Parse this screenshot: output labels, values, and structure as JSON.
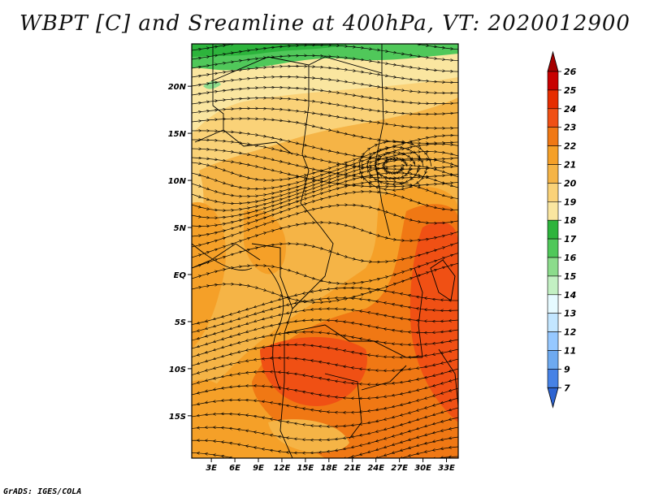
{
  "title": "WBPT [C] and Sreamline at 400hPa, VT: 2020012900",
  "credit": "GrADS: IGES/COLA",
  "map": {
    "lat_labels": [
      "20N",
      "15N",
      "10N",
      "5N",
      "EQ",
      "5S",
      "10S",
      "15S"
    ],
    "lon_labels": [
      "3E",
      "6E",
      "9E",
      "12E",
      "15E",
      "18E",
      "21E",
      "24E",
      "27E",
      "30E",
      "33E"
    ],
    "lat_values": [
      20,
      15,
      10,
      5,
      0,
      -5,
      -10,
      -15
    ],
    "lon_values": [
      3,
      6,
      9,
      12,
      15,
      18,
      21,
      24,
      27,
      30,
      33
    ],
    "extent": {
      "lon_min": 0.5,
      "lon_max": 34.5,
      "lat_min": -19.5,
      "lat_max": 24.5
    },
    "variable": "WBPT [C]",
    "level": "400hPa",
    "valid_time": "2020012900"
  },
  "colorbar": {
    "labels": [
      "26",
      "25",
      "24",
      "23",
      "22",
      "21",
      "20",
      "19",
      "18",
      "17",
      "16",
      "15",
      "14",
      "13",
      "12",
      "11",
      "9",
      "7"
    ],
    "colors": [
      "#a50000",
      "#c80000",
      "#e62d00",
      "#f05014",
      "#f07814",
      "#f5a028",
      "#f5b446",
      "#fad278",
      "#fae6a0",
      "#2db43c",
      "#50c85a",
      "#8cdc8c",
      "#c3f0c3",
      "#e6faff",
      "#c3e6ff",
      "#96c8ff",
      "#6eaaf0",
      "#4682e6",
      "#2d64d2"
    ]
  }
}
